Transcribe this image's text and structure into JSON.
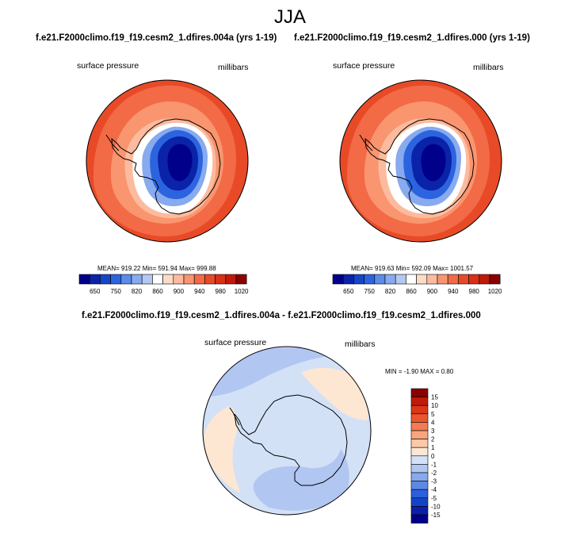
{
  "page": {
    "title": "JJA",
    "diff_title": "f.e21.F2000climo.f19_f19.cesm2_1.dfires.004a - f.e21.F2000climo.f19_f19.cesm2_1.dfires.000"
  },
  "colors": {
    "abs_levels": [
      "#00008b",
      "#0a23a8",
      "#1446c8",
      "#2c64df",
      "#5a8ce8",
      "#88aaee",
      "#b4c8f2",
      "#ffffff",
      "#fddcc6",
      "#fcbb9e",
      "#f9956f",
      "#f26a46",
      "#e84a27",
      "#d93016",
      "#c01a0a",
      "#8b0000"
    ],
    "diff_levels": [
      "#00008b",
      "#0b1fa8",
      "#1543c8",
      "#2b5fdc",
      "#5c89e6",
      "#88a9ec",
      "#b1c6f1",
      "#d3e1f7",
      "#fde6d2",
      "#fcc8a8",
      "#f9a57e",
      "#f47b52",
      "#ea5530",
      "#dc3517",
      "#c01a0a",
      "#8b0000"
    ],
    "background_pressure": "#e84a27",
    "diff_background": "#d3e1f7",
    "diff_positive": "#fde6d2",
    "diff_negative_deep": "#b1c6f1"
  },
  "chart_data": [
    {
      "type": "heatmap",
      "projection": "south-polar-stereographic",
      "title": "f.e21.F2000climo.f19_f19.cesm2_1.dfires.004a (yrs 1-19)",
      "left_label": "surface pressure",
      "right_label": "millibars",
      "stats": "MEAN= 919.22  Min= 591.94  Max= 999.88",
      "mean": 919.22,
      "min": 591.94,
      "max": 999.88,
      "colorbar_ticks": [
        "650",
        "750",
        "820",
        "860",
        "900",
        "940",
        "980",
        "1020"
      ],
      "colorbar_levels": 16
    },
    {
      "type": "heatmap",
      "projection": "south-polar-stereographic",
      "title": "f.e21.F2000climo.f19_f19.cesm2_1.dfires.000 (yrs 1-19)",
      "left_label": "surface pressure",
      "right_label": "millibars",
      "stats": "MEAN= 919.63  Min= 592.09  Max= 1001.57",
      "mean": 919.63,
      "min": 592.09,
      "max": 1001.57,
      "colorbar_ticks": [
        "650",
        "750",
        "820",
        "860",
        "900",
        "940",
        "980",
        "1020"
      ],
      "colorbar_levels": 16
    },
    {
      "type": "heatmap",
      "projection": "south-polar-stereographic",
      "title": "f.e21.F2000climo.f19_f19.cesm2_1.dfires.004a - f.e21.F2000climo.f19_f19.cesm2_1.dfires.000",
      "left_label": "surface pressure",
      "right_label": "millibars",
      "stats": "MIN = -1.90 MAX =  0.80",
      "min": -1.9,
      "max": 0.8,
      "colorbar_ticks": [
        "15",
        "10",
        "5",
        "4",
        "3",
        "2",
        "1",
        "0",
        "-1",
        "-2",
        "-3",
        "-4",
        "-5",
        "-10",
        "-15"
      ],
      "colorbar_orientation": "vertical"
    }
  ]
}
